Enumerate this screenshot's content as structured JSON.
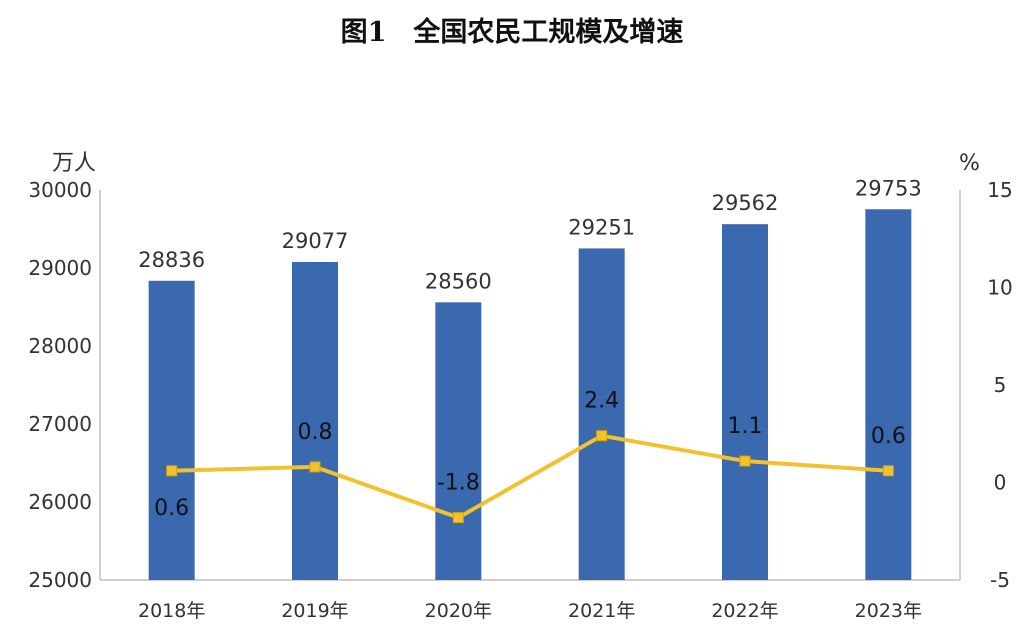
{
  "title": "图1　全国农民工规模及增速",
  "chart_data": {
    "type": "bar",
    "title": "图1　全国农民工规模及增速",
    "categories": [
      "2018年",
      "2019年",
      "2020年",
      "2021年",
      "2022年",
      "2023年"
    ],
    "series": [
      {
        "name": "",
        "type": "bar",
        "axis": "left",
        "color": "#3A69AF",
        "values": [
          28836,
          29077,
          28560,
          29251,
          29562,
          29753
        ],
        "labels": [
          "28836",
          "29077",
          "28560",
          "29251",
          "29562",
          "29753"
        ]
      },
      {
        "name": "",
        "type": "line",
        "axis": "right",
        "color": "#F2C12E",
        "values": [
          0.6,
          0.8,
          -1.8,
          2.4,
          1.1,
          0.6
        ],
        "labels": [
          "0.6",
          "0.8",
          "-1.8",
          "2.4",
          "1.1",
          "0.6"
        ]
      }
    ],
    "y_left": {
      "unit": "万人",
      "ylim": [
        25000,
        30000
      ],
      "ticks": [
        "25000",
        "26000",
        "27000",
        "28000",
        "29000",
        "30000"
      ]
    },
    "y_right": {
      "unit": "%",
      "ylim": [
        -5,
        15
      ],
      "ticks": [
        "-5",
        "0",
        "5",
        "10",
        "15"
      ]
    },
    "grid": false,
    "legend": "none"
  }
}
